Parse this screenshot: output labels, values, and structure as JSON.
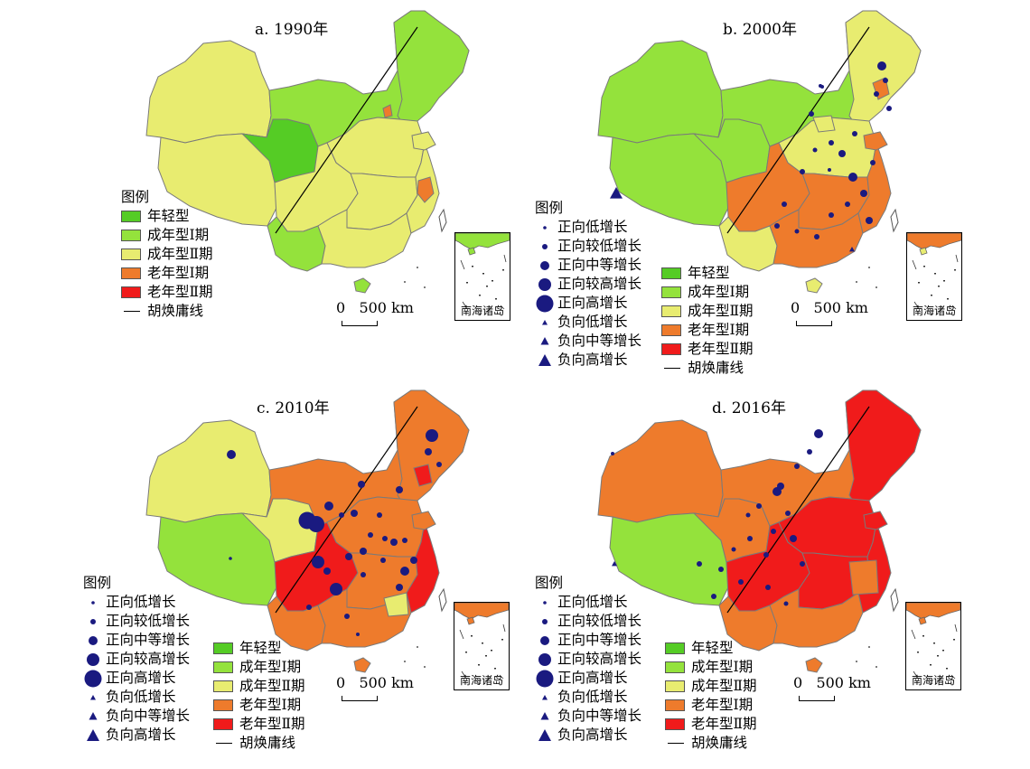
{
  "colors": {
    "young": "#55cc25",
    "adult_i": "#94e23c",
    "adult_ii": "#e8ec70",
    "old_i": "#ee7b2c",
    "old_ii": "#f01b1b",
    "symbol": "#1a1a80",
    "boundary": "#7a7a7a"
  },
  "panels": [
    {
      "title": "a. 1990年",
      "legend": {
        "heading": "图例",
        "classes": [
          "年轻型",
          "成年型Ⅰ期",
          "成年型Ⅱ期",
          "老年型Ⅰ期",
          "老年型Ⅱ期"
        ],
        "line": "胡焕庸线"
      },
      "scale": "0   500 km",
      "inset": "南海诸岛"
    },
    {
      "title": "b. 2000年",
      "legend": {
        "heading": "图例",
        "growth": [
          "正向低增长",
          "正向较低增长",
          "正向中等增长",
          "正向较高增长",
          "正向高增长",
          "负向低增长",
          "负向中等增长",
          "负向高增长"
        ],
        "classes": [
          "年轻型",
          "成年型Ⅰ期",
          "成年型Ⅱ期",
          "老年型Ⅰ期",
          "老年型Ⅱ期"
        ],
        "line": "胡焕庸线"
      },
      "scale": "0   500 km",
      "inset": "南海诸岛"
    },
    {
      "title": "c. 2010年",
      "legend": {
        "heading": "图例",
        "growth": [
          "正向低增长",
          "正向较低增长",
          "正向中等增长",
          "正向较高增长",
          "正向高增长",
          "负向低增长",
          "负向中等增长",
          "负向高增长"
        ],
        "classes": [
          "年轻型",
          "成年型Ⅰ期",
          "成年型Ⅱ期",
          "老年型Ⅰ期",
          "老年型Ⅱ期"
        ],
        "line": "胡焕庸线"
      },
      "scale": "0   500 km",
      "inset": "南海诸岛"
    },
    {
      "title": "d. 2016年",
      "legend": {
        "heading": "图例",
        "growth": [
          "正向低增长",
          "正向较低增长",
          "正向中等增长",
          "正向较高增长",
          "正向高增长",
          "负向低增长",
          "负向中等增长",
          "负向高增长"
        ],
        "classes": [
          "年轻型",
          "成年型Ⅰ期",
          "成年型Ⅱ期",
          "老年型Ⅰ期",
          "老年型Ⅱ期"
        ],
        "line": "胡焕庸线"
      },
      "scale": "0   500 km",
      "inset": "南海诸岛"
    }
  ]
}
